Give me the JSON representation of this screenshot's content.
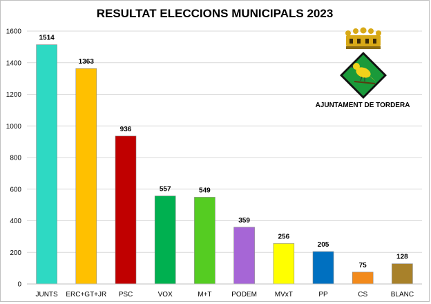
{
  "logo": {
    "text": "AJUNTAMENT DE TORDERA",
    "shield_color": "#1a9a3a",
    "bird_color": "#f2d21b",
    "crown_color": "#d8a917"
  },
  "chart_data": {
    "type": "bar",
    "title": "RESULTAT ELECCIONS MUNICIPALS 2023",
    "xlabel": "",
    "ylabel": "",
    "ylim": [
      0,
      1600
    ],
    "yticks": [
      0,
      200,
      400,
      600,
      800,
      1000,
      1200,
      1400,
      1600
    ],
    "grid": true,
    "categories": [
      "JUNTS",
      "ERC+GT+JR",
      "PSC",
      "VOX",
      "M+T",
      "PODEM",
      "MVxT",
      "PP",
      "CS",
      "BLANC"
    ],
    "values": [
      1514,
      1363,
      936,
      557,
      549,
      359,
      256,
      205,
      75,
      128
    ],
    "colors": [
      "#2ed9c3",
      "#ffc000",
      "#c00000",
      "#00b050",
      "#55cc22",
      "#a666d6",
      "#ffff00",
      "#0070c0",
      "#f28a1c",
      "#a8812a"
    ]
  }
}
